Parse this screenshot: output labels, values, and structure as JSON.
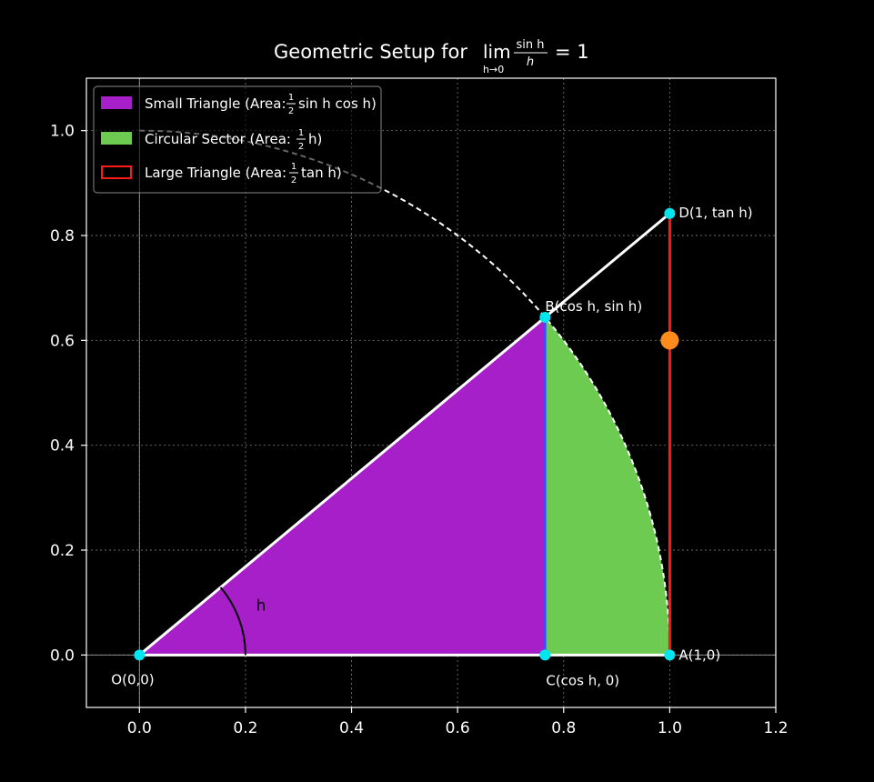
{
  "chart_data": {
    "type": "geometric-diagram",
    "title": {
      "prefix": "Geometric Setup for ",
      "lim": "lim",
      "lim_sub": "h→0",
      "frac_num": "sin h",
      "frac_den": "h",
      "suffix": "= 1"
    },
    "xlim": [
      -0.1,
      1.2
    ],
    "ylim": [
      -0.1,
      1.1
    ],
    "x_ticks": [
      0.0,
      0.2,
      0.4,
      0.6,
      0.8,
      1.0,
      1.2
    ],
    "x_tick_labels": [
      "0.0",
      "0.2",
      "0.4",
      "0.6",
      "0.8",
      "1.0",
      "1.2"
    ],
    "y_ticks": [
      0.0,
      0.2,
      0.4,
      0.6,
      0.8,
      1.0
    ],
    "y_tick_labels": [
      "0.0",
      "0.2",
      "0.4",
      "0.6",
      "0.8",
      "1.0"
    ],
    "grid": true,
    "angle_h_rad": 0.7,
    "angle_label": "h",
    "unit_circle_radius": 1.0,
    "points": [
      {
        "id": "O",
        "x": 0.0,
        "y": 0.0,
        "label": "O(0,0)",
        "color": "#00e5ee"
      },
      {
        "id": "A",
        "x": 1.0,
        "y": 0.0,
        "label": "A(1,0)",
        "color": "#00e5ee"
      },
      {
        "id": "B",
        "x": 0.765,
        "y": 0.644,
        "label": "B(cos h, sin h)",
        "color": "#00e5ee"
      },
      {
        "id": "C",
        "x": 0.765,
        "y": 0.0,
        "label": "C(cos h, 0)",
        "color": "#00e5ee"
      },
      {
        "id": "D",
        "x": 1.0,
        "y": 0.842,
        "label": "D(1, tan h)",
        "color": "#00e5ee"
      }
    ],
    "highlight_point": {
      "x": 1.0,
      "y": 0.6,
      "color": "#ff8c1a"
    },
    "legend": {
      "placement": "top-left",
      "entries": [
        {
          "id": "small",
          "text": "Small Triangle (Area: ",
          "frac_num": "1",
          "frac_den": "2",
          "rest": "sin h cos h)",
          "color": "#a61fc8",
          "style": "fill"
        },
        {
          "id": "sector",
          "text": "Circular Sector (Area: ",
          "frac_num": "1",
          "frac_den": "2",
          "rest": "h)",
          "color": "#6ccb50",
          "style": "fill"
        },
        {
          "id": "large",
          "text": "Large Triangle (Area: ",
          "frac_num": "1",
          "frac_den": "2",
          "rest": "tan h)",
          "color": "#ff1a1a",
          "style": "outline"
        }
      ]
    },
    "colors": {
      "background": "#000000",
      "axes": "#ffffff",
      "grid": "#6f6f6f",
      "small_triangle": "#a61fc8",
      "sector": "#6ccb50",
      "tangent_line": "#ff1a1a",
      "bc_segment": "#3b4cff",
      "lines": "#ffffff"
    }
  }
}
